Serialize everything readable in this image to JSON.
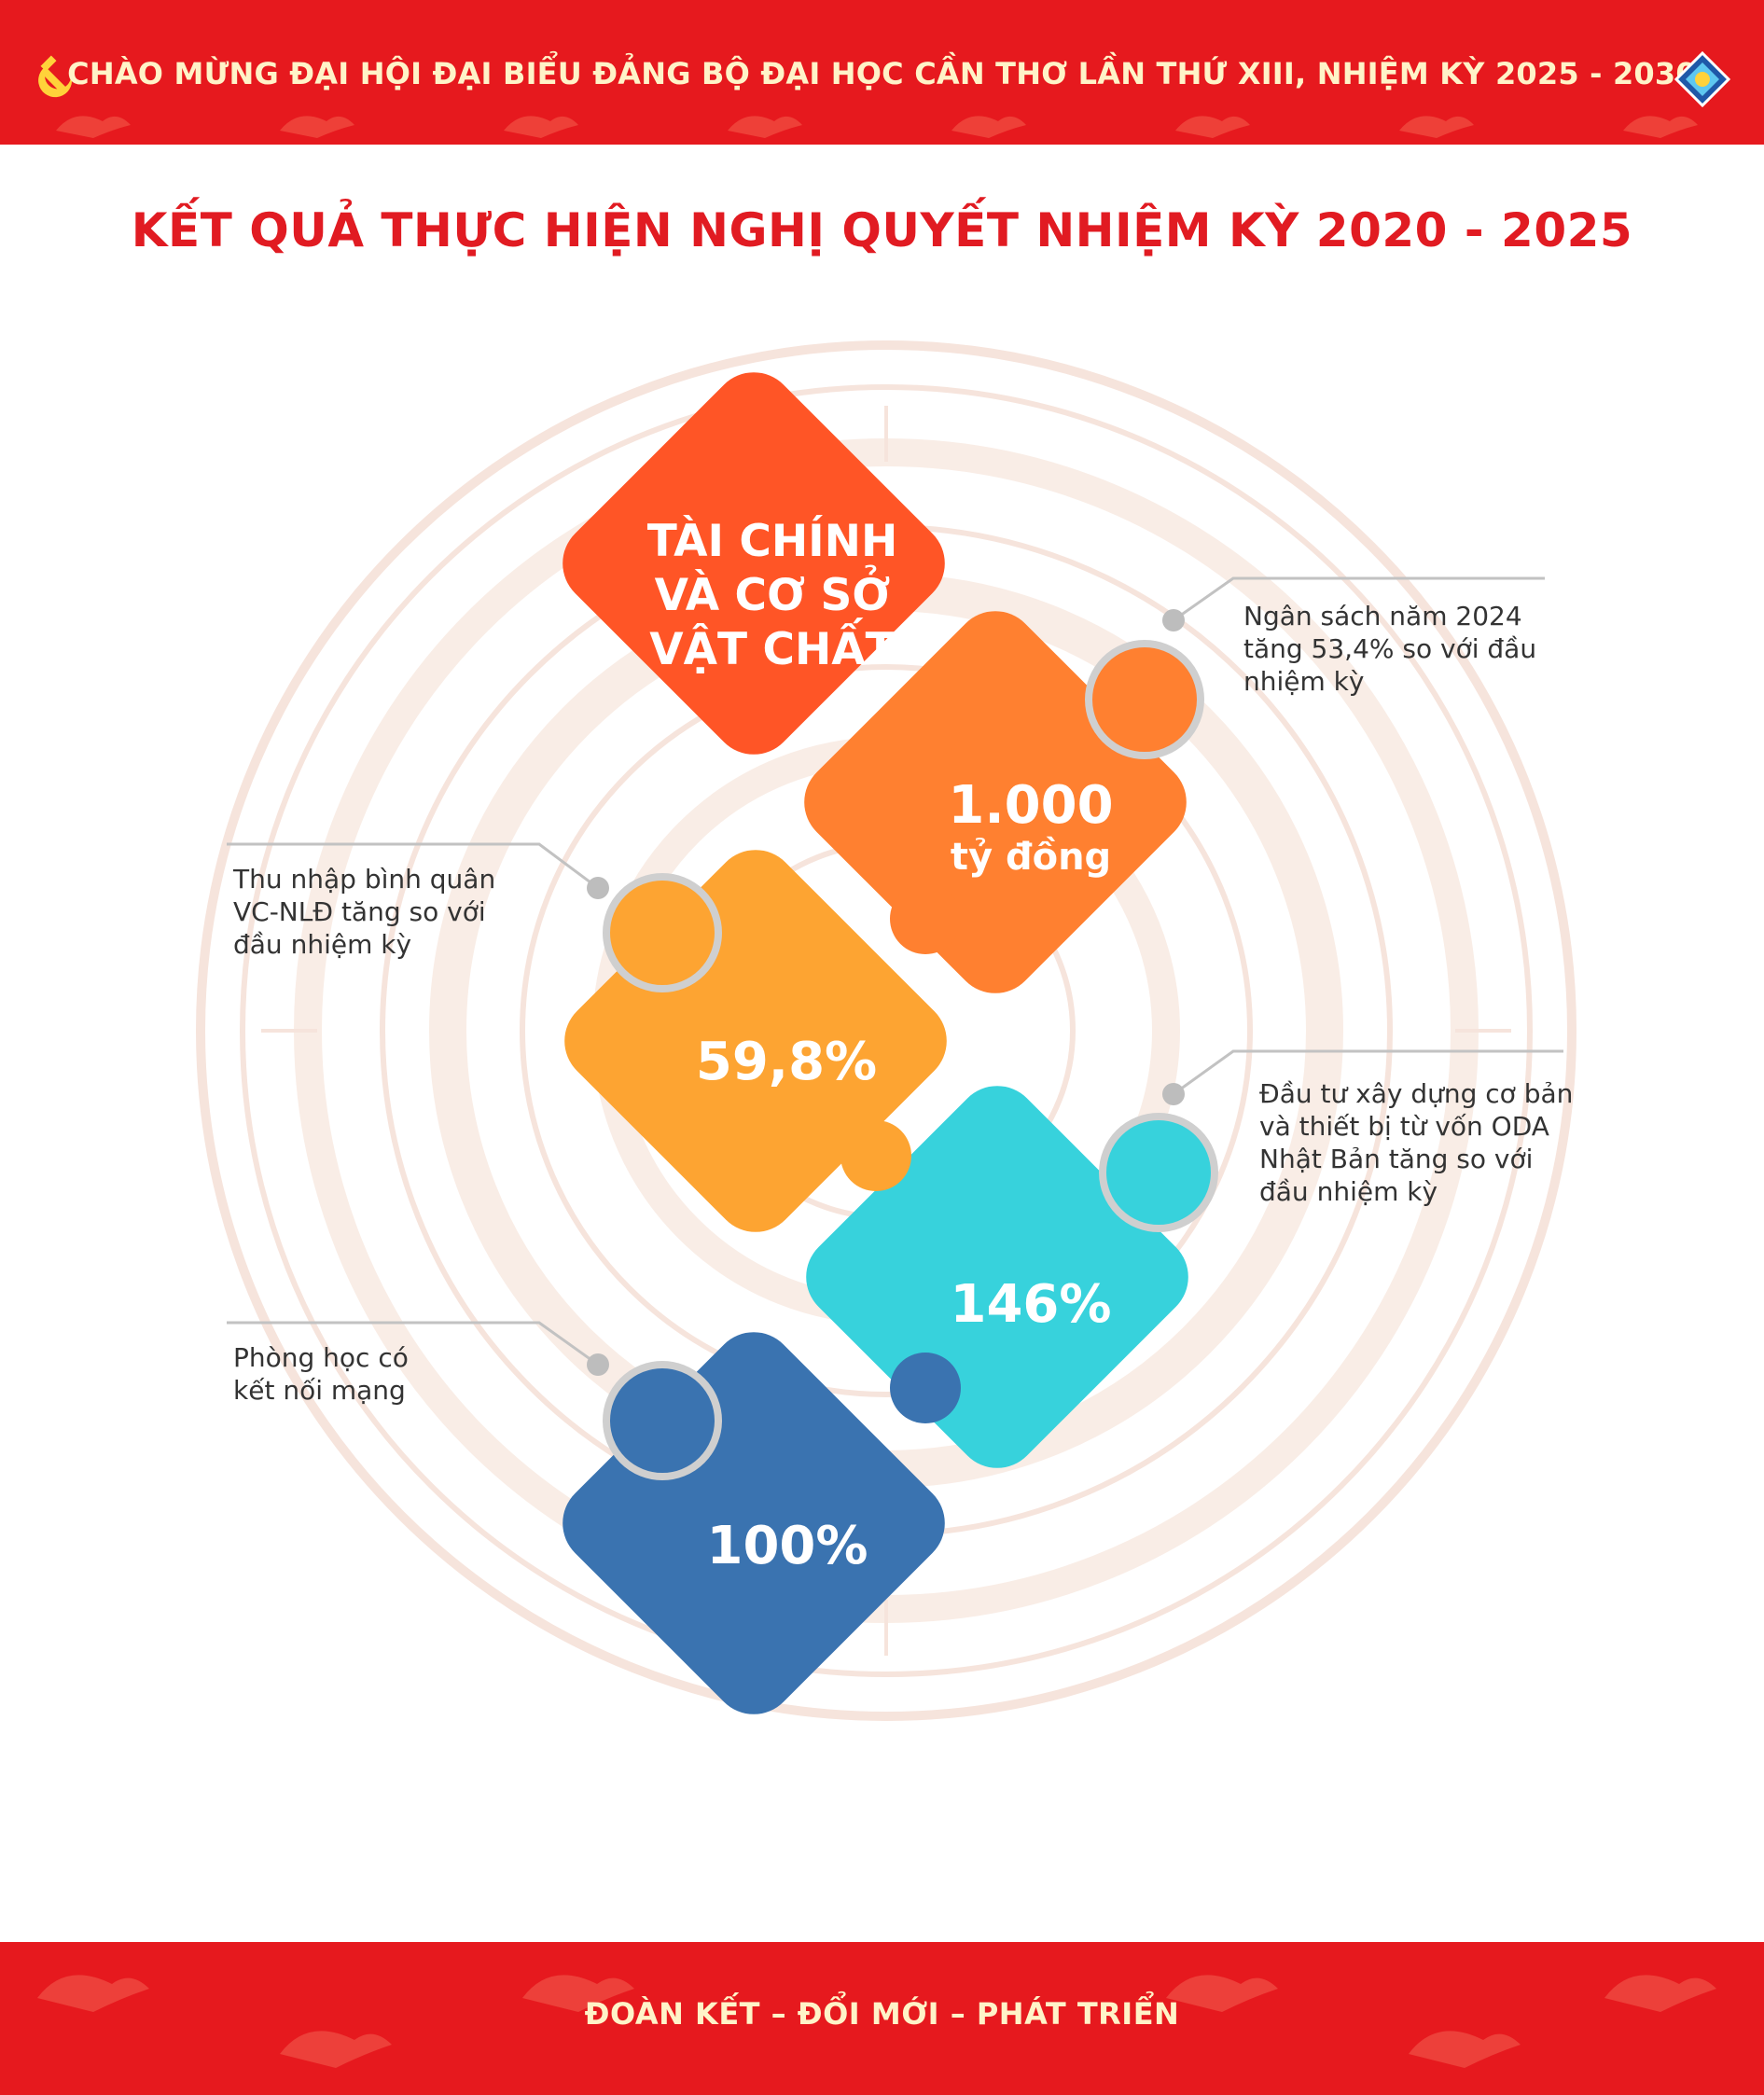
{
  "header": {
    "banner_text": "CHÀO MỪNG ĐẠI HỘI ĐẠI BIỂU ĐẢNG BỘ ĐẠI HỌC CẦN THƠ LẦN THỨ XIII, NHIỆM KỲ 2025 - 2030",
    "left_icon": "hammer-sickle-icon",
    "right_icon": "university-logo-icon"
  },
  "title": "KẾT QUẢ THỰC HIỆN NGHỊ QUYẾT NHIỆM KỲ 2020 - 2025",
  "pieces": [
    {
      "lines": [
        "TÀI CHÍNH",
        "VÀ CƠ SỞ",
        "VẬT CHẤT"
      ],
      "color": "#ff5526"
    },
    {
      "value": "1.000",
      "unit": "tỷ đồng",
      "color": "#ff8030"
    },
    {
      "value": "59,8%",
      "color": "#fda432"
    },
    {
      "value": "146%",
      "color": "#37d2dc"
    },
    {
      "value": "100%",
      "color": "#3a73b0"
    }
  ],
  "annotations": [
    {
      "lines": [
        "Ngân sách năm 2024",
        "tăng 53,4% so với đầu",
        "nhiệm kỳ"
      ]
    },
    {
      "lines": [
        "Thu nhập bình quân",
        "VC-NLĐ tăng so với",
        "đầu nhiệm kỳ"
      ]
    },
    {
      "lines": [
        "Đầu tư xây dựng cơ bản",
        "và thiết bị từ vốn ODA",
        "Nhật Bản tăng so với",
        "đầu nhiệm kỳ"
      ]
    },
    {
      "lines": [
        "Phòng học có",
        "kết nối mạng"
      ]
    }
  ],
  "footer": {
    "slogan": "ĐOÀN KẾT – ĐỔI MỚI – PHÁT TRIỂN"
  },
  "colors": {
    "banner_red": "#e6191e",
    "title_red": "#e11b22",
    "banner_text": "#fff3c8",
    "annotation_gray": "#bdbdbd"
  }
}
